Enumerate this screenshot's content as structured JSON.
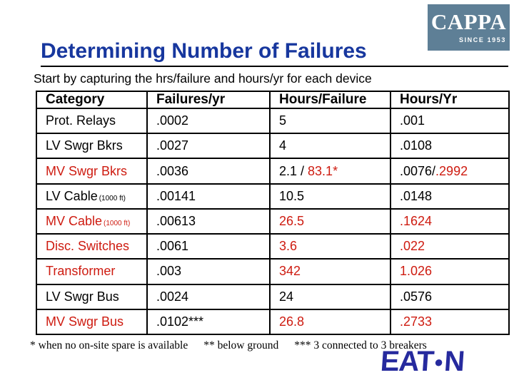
{
  "slide": {
    "title": "Determining Number of Failures",
    "subtitle": "Start by capturing the hrs/failure and hours/yr for each device"
  },
  "cappa_logo": {
    "wordmark": "CAPPA",
    "tagline": "SINCE 1953"
  },
  "eaton_logo": {
    "left": "EAT",
    "dot": "●",
    "right": "N"
  },
  "colors": {
    "title_navy": "#17379E",
    "table_red": "#CE1B10",
    "cappa_box_blue": "#5E7F96",
    "eaton_blue": "#262A9E",
    "text_black": "#000000"
  },
  "table": {
    "headers": [
      "Category",
      "Failures/yr",
      "Hours/Failure",
      "Hours/Yr"
    ],
    "rows": [
      {
        "category": {
          "text": "Prot. Relays",
          "red": false,
          "sub": ""
        },
        "failures_yr": [
          {
            "t": ".0002",
            "red": false
          }
        ],
        "hours_failure": [
          {
            "t": "5",
            "red": false
          }
        ],
        "hours_yr": [
          {
            "t": ".001",
            "red": false
          }
        ]
      },
      {
        "category": {
          "text": "LV Swgr Bkrs",
          "red": false,
          "sub": ""
        },
        "failures_yr": [
          {
            "t": ".0027",
            "red": false
          }
        ],
        "hours_failure": [
          {
            "t": "4",
            "red": false
          }
        ],
        "hours_yr": [
          {
            "t": ".0108",
            "red": false
          }
        ]
      },
      {
        "category": {
          "text": "MV Swgr Bkrs",
          "red": true,
          "sub": ""
        },
        "failures_yr": [
          {
            "t": ".0036",
            "red": false
          }
        ],
        "hours_failure": [
          {
            "t": "2.1 / ",
            "red": false
          },
          {
            "t": "83.1*",
            "red": true
          }
        ],
        "hours_yr": [
          {
            "t": ".0076/",
            "red": false
          },
          {
            "t": ".2992",
            "red": true
          }
        ]
      },
      {
        "category": {
          "text": "LV Cable",
          "red": false,
          "sub": "(1000 ft)"
        },
        "failures_yr": [
          {
            "t": ".00141",
            "red": false
          }
        ],
        "hours_failure": [
          {
            "t": "10.5",
            "red": false
          }
        ],
        "hours_yr": [
          {
            "t": ".0148",
            "red": false
          }
        ]
      },
      {
        "category": {
          "text": "MV Cable",
          "red": true,
          "sub": "(1000 ft)"
        },
        "failures_yr": [
          {
            "t": ".00613",
            "red": false
          }
        ],
        "hours_failure": [
          {
            "t": "26.5",
            "red": true
          }
        ],
        "hours_yr": [
          {
            "t": ".1624",
            "red": true
          }
        ]
      },
      {
        "category": {
          "text": "Disc. Switches",
          "red": true,
          "sub": ""
        },
        "failures_yr": [
          {
            "t": ".0061",
            "red": false
          }
        ],
        "hours_failure": [
          {
            "t": "3.6",
            "red": true
          }
        ],
        "hours_yr": [
          {
            "t": ".022",
            "red": true
          }
        ]
      },
      {
        "category": {
          "text": "Transformer",
          "red": true,
          "sub": ""
        },
        "failures_yr": [
          {
            "t": ".003",
            "red": false
          }
        ],
        "hours_failure": [
          {
            "t": "342",
            "red": true
          }
        ],
        "hours_yr": [
          {
            "t": "1.026",
            "red": true
          }
        ]
      },
      {
        "category": {
          "text": "LV Swgr Bus",
          "red": false,
          "sub": ""
        },
        "failures_yr": [
          {
            "t": ".0024",
            "red": false
          }
        ],
        "hours_failure": [
          {
            "t": "24",
            "red": false
          }
        ],
        "hours_yr": [
          {
            "t": ".0576",
            "red": false
          }
        ]
      },
      {
        "category": {
          "text": "MV Swgr Bus",
          "red": true,
          "sub": ""
        },
        "failures_yr": [
          {
            "t": ".0102***",
            "red": false
          }
        ],
        "hours_failure": [
          {
            "t": "26.8",
            "red": true
          }
        ],
        "hours_yr": [
          {
            "t": ".2733",
            "red": true
          }
        ]
      }
    ]
  },
  "footnotes": [
    "* when no on-site spare is available",
    "** below ground",
    "*** 3 connected to 3 breakers"
  ]
}
